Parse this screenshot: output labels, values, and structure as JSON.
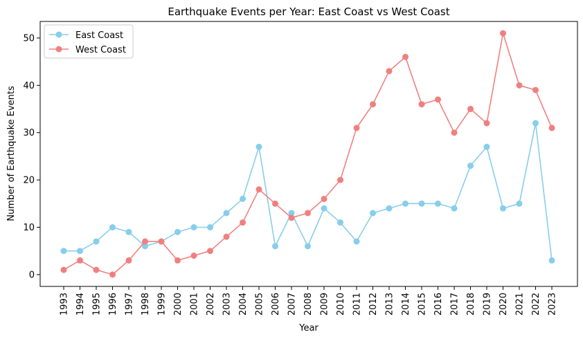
{
  "chart_data": {
    "type": "line",
    "title": "Earthquake Events per Year: East Coast vs West Coast",
    "xlabel": "Year",
    "ylabel": "Number of Earthquake Events",
    "categories": [
      "1993",
      "1994",
      "1995",
      "1996",
      "1997",
      "1998",
      "1999",
      "2000",
      "2001",
      "2002",
      "2003",
      "2004",
      "2005",
      "2006",
      "2007",
      "2008",
      "2009",
      "2010",
      "2011",
      "2012",
      "2013",
      "2014",
      "2015",
      "2016",
      "2017",
      "2018",
      "2019",
      "2020",
      "2021",
      "2022",
      "2023"
    ],
    "ylim": [
      -2.5,
      53.5
    ],
    "yticks": [
      0,
      10,
      20,
      30,
      40,
      50
    ],
    "legend_position": "top-left",
    "grid": false,
    "series": [
      {
        "name": "East Coast",
        "color": "#87ceeb",
        "values": [
          5,
          5,
          7,
          10,
          9,
          6,
          7,
          9,
          10,
          10,
          13,
          16,
          27,
          6,
          13,
          6,
          14,
          11,
          7,
          13,
          14,
          15,
          15,
          15,
          14,
          23,
          27,
          14,
          15,
          32,
          3
        ]
      },
      {
        "name": "West Coast",
        "color": "#f08080",
        "values": [
          1,
          3,
          1,
          0,
          3,
          7,
          7,
          3,
          4,
          5,
          8,
          11,
          18,
          15,
          12,
          13,
          16,
          20,
          31,
          36,
          43,
          46,
          36,
          37,
          30,
          35,
          32,
          51,
          40,
          39,
          31
        ]
      }
    ]
  }
}
